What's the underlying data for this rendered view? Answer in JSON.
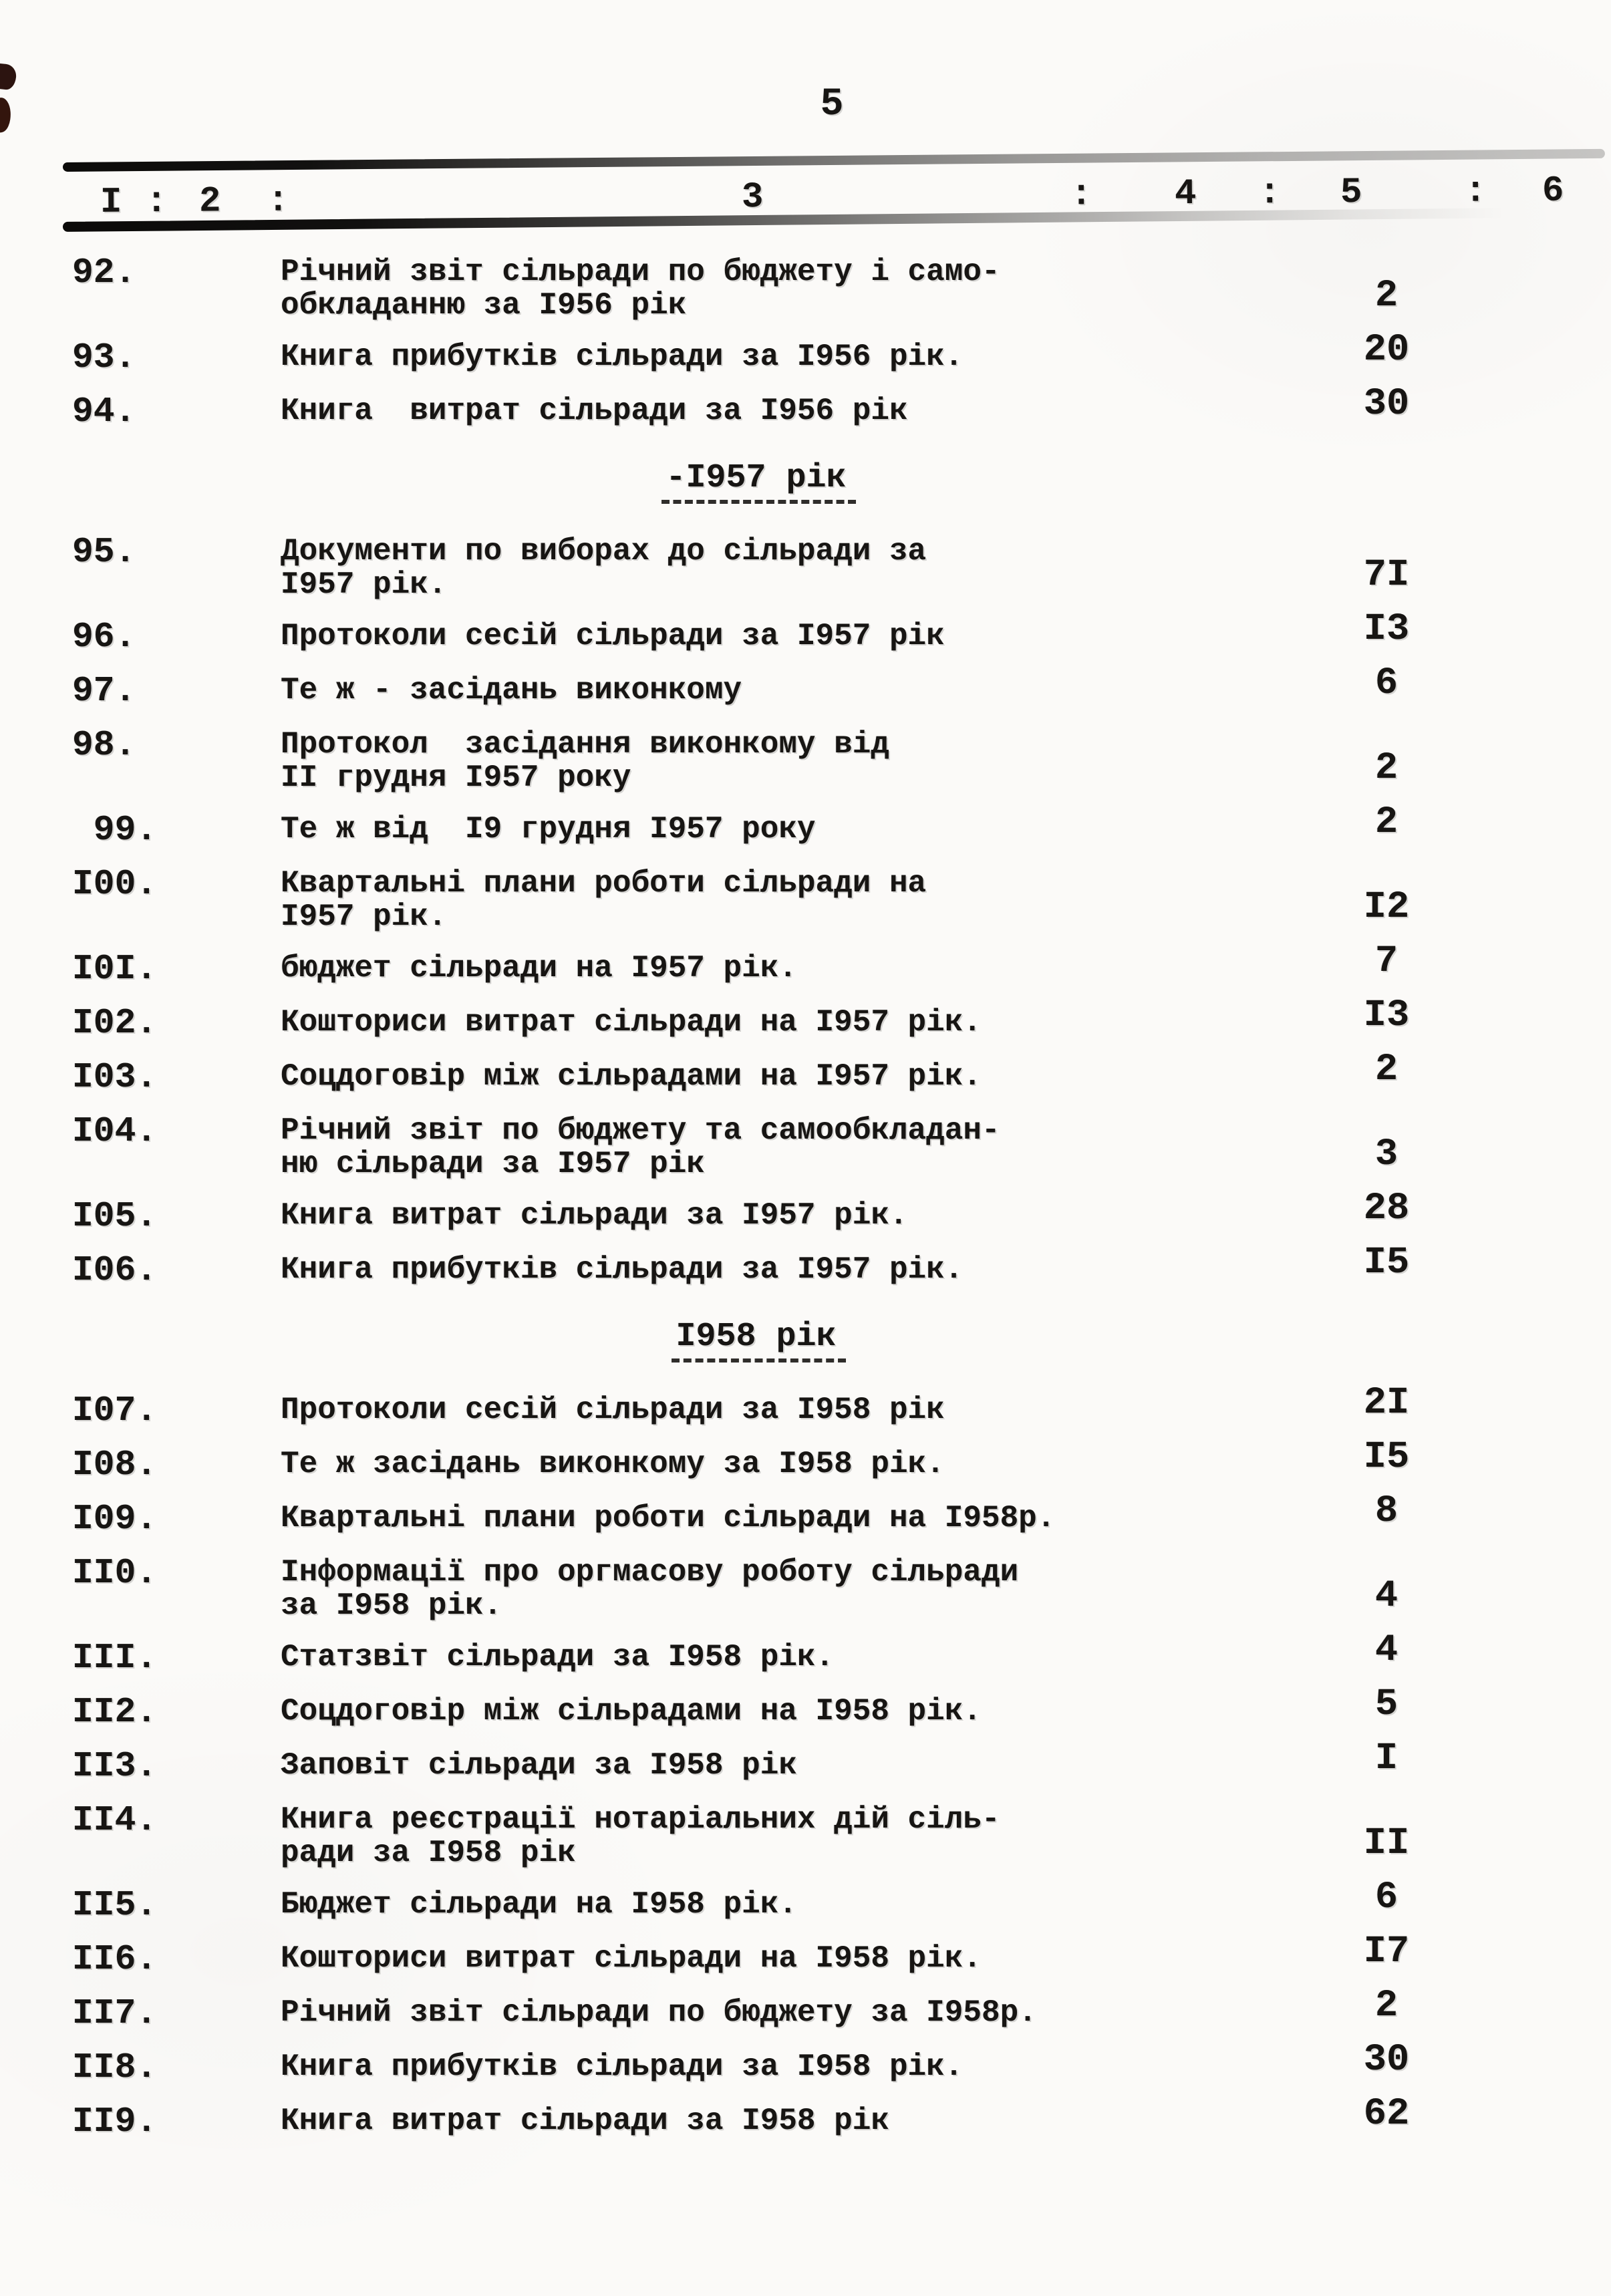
{
  "page": {
    "number": "5"
  },
  "table": {
    "header_cells": [
      "I",
      ":",
      "2",
      ":",
      "3",
      ":",
      "4",
      ":",
      "5",
      ":",
      "6"
    ],
    "entries": [
      {
        "type": "item",
        "num": "92.",
        "lines": [
          "Річний звіт сільради по бюджету і само-",
          "обкладанню за I956 рік"
        ],
        "count": "2"
      },
      {
        "type": "item",
        "num": "93.",
        "lines": [
          "Книга прибутків сільради за I956 рік."
        ],
        "count": "20"
      },
      {
        "type": "item",
        "num": "94.",
        "lines": [
          "Книга  витрат сільради за I956 рік"
        ],
        "count": "30"
      },
      {
        "type": "section",
        "title": "-I957 рік"
      },
      {
        "type": "item",
        "num": "95.",
        "lines": [
          "Документи по виборах до сільради за",
          "I957 рік."
        ],
        "count": "7I"
      },
      {
        "type": "item",
        "num": "96.",
        "lines": [
          "Протоколи сесій сільради за I957 рік"
        ],
        "count": "I3"
      },
      {
        "type": "item",
        "num": "97.",
        "lines": [
          "Те ж - засідань виконкому"
        ],
        "count": "6"
      },
      {
        "type": "item",
        "num": "98.",
        "lines": [
          "Протокол  засідання виконкому від",
          "II грудня I957 року"
        ],
        "count": "2"
      },
      {
        "type": "item",
        "num": " 99.",
        "lines": [
          "Те ж від  I9 грудня I957 року"
        ],
        "count": "2"
      },
      {
        "type": "item",
        "num": "I00.",
        "lines": [
          "Квартальні плани роботи сільради на",
          "I957 рік."
        ],
        "count": "I2"
      },
      {
        "type": "item",
        "num": "I0I.",
        "lines": [
          "бюджет сільради на I957 рік."
        ],
        "count": "7"
      },
      {
        "type": "item",
        "num": "I02.",
        "lines": [
          "Кошториси витрат сільради на I957 рік."
        ],
        "count": "I3"
      },
      {
        "type": "item",
        "num": "I03.",
        "lines": [
          "Соцдоговір між сільрадами на I957 рік."
        ],
        "count": "2"
      },
      {
        "type": "item",
        "num": "I04.",
        "lines": [
          "Річний звіт по бюджету та самообкладан-",
          "ню сільради за I957 рік"
        ],
        "count": "3"
      },
      {
        "type": "item",
        "num": "I05.",
        "lines": [
          "Книга витрат сільради за I957 рік."
        ],
        "count": "28"
      },
      {
        "type": "item",
        "num": "I06.",
        "lines": [
          "Книга прибутків сільради за I957 рік."
        ],
        "count": "I5"
      },
      {
        "type": "section",
        "title": "I958 рік"
      },
      {
        "type": "item",
        "num": "I07.",
        "lines": [
          "Протоколи сесій сільради за I958 рік"
        ],
        "count": "2I"
      },
      {
        "type": "item",
        "num": "I08.",
        "lines": [
          "Те ж засідань виконкому за I958 рік."
        ],
        "count": "I5"
      },
      {
        "type": "item",
        "num": "I09.",
        "lines": [
          "Квартальні плани роботи сільради на I958р."
        ],
        "count": "8"
      },
      {
        "type": "item",
        "num": "II0.",
        "lines": [
          "Інформації про оргмасову роботу сільради",
          "за I958 рік."
        ],
        "count": "4"
      },
      {
        "type": "item",
        "num": "III.",
        "lines": [
          "Статзвіт сільради за I958 рік."
        ],
        "count": "4"
      },
      {
        "type": "item",
        "num": "II2.",
        "lines": [
          "Соцдоговір між сільрадами на I958 рік."
        ],
        "count": "5"
      },
      {
        "type": "item",
        "num": "II3.",
        "lines": [
          "Заповіт сільради за I958 рік"
        ],
        "count": "I"
      },
      {
        "type": "item",
        "num": "II4.",
        "lines": [
          "Книга реєстрації нотаріальних дій сіль-",
          "ради за I958 рік"
        ],
        "count": "II"
      },
      {
        "type": "item",
        "num": "II5.",
        "lines": [
          "Бюджет сільради на I958 рік."
        ],
        "count": "6"
      },
      {
        "type": "item",
        "num": "II6.",
        "lines": [
          "Кошториси витрат сільради на I958 рік."
        ],
        "count": "I7"
      },
      {
        "type": "item",
        "num": "II7.",
        "lines": [
          "Річний звіт сільради по бюджету за I958р."
        ],
        "count": "2"
      },
      {
        "type": "item",
        "num": "II8.",
        "lines": [
          "Книга прибутків сільради за I958 рік."
        ],
        "count": "30"
      },
      {
        "type": "item",
        "num": "II9.",
        "lines": [
          "Книга витрат сільради за I958 рік"
        ],
        "count": "62"
      }
    ]
  }
}
